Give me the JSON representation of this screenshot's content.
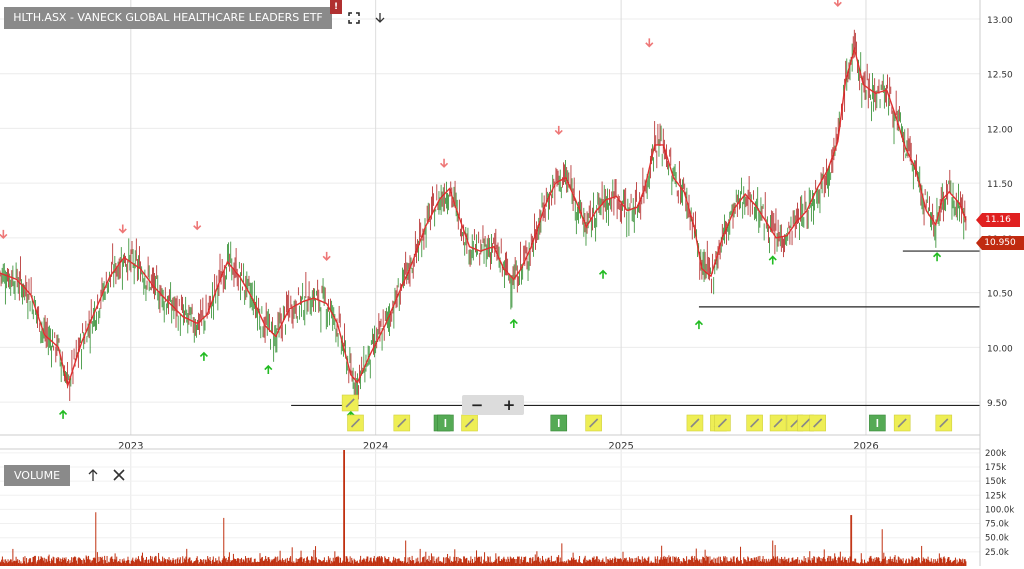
{
  "title": "HLTH.ASX - VANECK GLOBAL HEALTHCARE LEADERS ETF",
  "alert_flag": "!",
  "toolbar": {
    "fullscreen_icon": "fullscreen-icon",
    "download_icon": "download-icon"
  },
  "zoom": {
    "minus": "−",
    "plus": "+"
  },
  "volume_panel": {
    "label": "VOLUME",
    "up_icon": "arrow-up-icon",
    "close_icon": "close-icon"
  },
  "price_tags": {
    "current": "11.16",
    "support": "10.950"
  },
  "colors": {
    "price_line": "#e03030",
    "candle_up": "#2a8a2a",
    "candle_down": "#b02020",
    "volume": "#c03010",
    "up_arrow": "#22bb22",
    "down_arrow": "#ee7777",
    "event_marker": "#eeee55",
    "dividend_marker": "#55aa55"
  },
  "chart_data": [
    {
      "type": "line",
      "title": "HLTH.ASX - VANECK GLOBAL HEALTHCARE LEADERS ETF",
      "x_ticks": [
        "2023",
        "2024",
        "2025",
        "2026"
      ],
      "y_ticks": [
        "13.00",
        "12.50",
        "12.00",
        "11.50",
        "11.00",
        "10.50",
        "10.00",
        "9.50"
      ],
      "ylim": [
        9.2,
        13.1
      ],
      "x_domain_dates": [
        "2022-06-20",
        "2026-06-20"
      ],
      "grid": true,
      "series": [
        {
          "values": [
            [
              "2022-06-20",
              10.68
            ],
            [
              "2022-07-15",
              10.62
            ],
            [
              "2022-08-05",
              10.48
            ],
            [
              "2022-08-25",
              10.12
            ],
            [
              "2022-09-15",
              10.0
            ],
            [
              "2022-09-29",
              9.65
            ],
            [
              "2022-10-20",
              10.05
            ],
            [
              "2022-11-10",
              10.35
            ],
            [
              "2022-12-01",
              10.65
            ],
            [
              "2022-12-22",
              10.82
            ],
            [
              "2023-01-15",
              10.72
            ],
            [
              "2023-02-05",
              10.55
            ],
            [
              "2023-02-25",
              10.42
            ],
            [
              "2023-03-20",
              10.28
            ],
            [
              "2023-04-10",
              10.22
            ],
            [
              "2023-04-25",
              10.3
            ],
            [
              "2023-05-10",
              10.55
            ],
            [
              "2023-05-25",
              10.78
            ],
            [
              "2023-06-12",
              10.65
            ],
            [
              "2023-07-01",
              10.45
            ],
            [
              "2023-07-20",
              10.2
            ],
            [
              "2023-08-05",
              10.1
            ],
            [
              "2023-08-25",
              10.35
            ],
            [
              "2023-09-15",
              10.42
            ],
            [
              "2023-10-01",
              10.45
            ],
            [
              "2023-10-20",
              10.4
            ],
            [
              "2023-11-05",
              10.22
            ],
            [
              "2023-11-25",
              9.75
            ],
            [
              "2023-12-05",
              9.68
            ],
            [
              "2023-12-25",
              9.95
            ],
            [
              "2024-01-15",
              10.2
            ],
            [
              "2024-02-05",
              10.5
            ],
            [
              "2024-02-25",
              10.78
            ],
            [
              "2024-03-15",
              11.1
            ],
            [
              "2024-04-05",
              11.35
            ],
            [
              "2024-04-20",
              11.45
            ],
            [
              "2024-05-05",
              11.18
            ],
            [
              "2024-05-20",
              10.92
            ],
            [
              "2024-06-05",
              10.88
            ],
            [
              "2024-06-25",
              10.92
            ],
            [
              "2024-07-10",
              10.72
            ],
            [
              "2024-07-25",
              10.62
            ],
            [
              "2024-08-05",
              10.72
            ],
            [
              "2024-08-20",
              10.92
            ],
            [
              "2024-09-10",
              11.3
            ],
            [
              "2024-09-25",
              11.5
            ],
            [
              "2024-10-10",
              11.55
            ],
            [
              "2024-10-25",
              11.35
            ],
            [
              "2024-11-10",
              11.1
            ],
            [
              "2024-11-25",
              11.25
            ],
            [
              "2024-12-10",
              11.35
            ],
            [
              "2024-12-25",
              11.38
            ],
            [
              "2025-01-10",
              11.25
            ],
            [
              "2025-01-25",
              11.28
            ],
            [
              "2025-02-05",
              11.45
            ],
            [
              "2025-02-20",
              11.85
            ],
            [
              "2025-03-05",
              11.85
            ],
            [
              "2025-03-20",
              11.55
            ],
            [
              "2025-04-05",
              11.42
            ],
            [
              "2025-04-20",
              11.1
            ],
            [
              "2025-05-01",
              10.72
            ],
            [
              "2025-05-15",
              10.65
            ],
            [
              "2025-06-01",
              11.0
            ],
            [
              "2025-06-20",
              11.28
            ],
            [
              "2025-07-05",
              11.4
            ],
            [
              "2025-07-20",
              11.3
            ],
            [
              "2025-08-05",
              11.15
            ],
            [
              "2025-08-20",
              11.0
            ],
            [
              "2025-09-05",
              11.02
            ],
            [
              "2025-09-20",
              11.15
            ],
            [
              "2025-10-05",
              11.25
            ],
            [
              "2025-10-20",
              11.45
            ],
            [
              "2025-11-05",
              11.62
            ],
            [
              "2025-11-20",
              11.88
            ],
            [
              "2025-12-02",
              12.45
            ],
            [
              "2025-12-15",
              12.72
            ],
            [
              "2025-12-28",
              12.4
            ],
            [
              "2026-01-15",
              12.32
            ],
            [
              "2026-02-01",
              12.35
            ],
            [
              "2026-02-15",
              12.1
            ],
            [
              "2026-03-01",
              11.82
            ],
            [
              "2026-03-15",
              11.65
            ],
            [
              "2026-04-01",
              11.25
            ],
            [
              "2026-04-15",
              11.12
            ],
            [
              "2026-04-25",
              11.35
            ],
            [
              "2026-05-05",
              11.42
            ],
            [
              "2026-05-20",
              11.32
            ],
            [
              "2026-05-30",
              11.16
            ]
          ]
        }
      ]
    },
    {
      "type": "bar",
      "title": "VOLUME",
      "y_ticks": [
        "200k",
        "175k",
        "150k",
        "125k",
        "100.0k",
        "75.0k",
        "50.0k",
        "25.0k"
      ],
      "ylim": [
        0,
        205000
      ],
      "spikes": [
        [
          "2022-11-10",
          95000
        ],
        [
          "2023-05-20",
          85000
        ],
        [
          "2023-11-15",
          205000
        ],
        [
          "2025-12-10",
          90000
        ],
        [
          "2026-01-25",
          65000
        ],
        [
          "2024-02-15",
          45000
        ],
        [
          "2024-10-05",
          40000
        ],
        [
          "2025-08-15",
          45000
        ]
      ]
    }
  ],
  "annotations": {
    "horizontal_lines": [
      {
        "price": 9.47,
        "from": "2023-08-28"
      },
      {
        "price": 10.37,
        "from": "2025-04-27"
      },
      {
        "price": 10.88,
        "from": "2026-02-25"
      }
    ],
    "up_arrows": [
      [
        "2022-09-22",
        9.42
      ],
      [
        "2023-04-20",
        9.95
      ],
      [
        "2023-07-25",
        9.83
      ],
      [
        "2023-11-25",
        9.41
      ],
      [
        "2024-07-25",
        10.25
      ],
      [
        "2024-12-05",
        10.7
      ],
      [
        "2025-04-27",
        10.24
      ],
      [
        "2025-08-15",
        10.83
      ],
      [
        "2026-04-17",
        10.86
      ]
    ],
    "down_arrows": [
      [
        "2022-06-25",
        11.0
      ],
      [
        "2022-12-20",
        11.05
      ],
      [
        "2023-04-10",
        11.08
      ],
      [
        "2023-10-20",
        10.8
      ],
      [
        "2024-04-12",
        11.65
      ],
      [
        "2024-09-30",
        11.95
      ],
      [
        "2025-02-12",
        12.75
      ],
      [
        "2025-11-20",
        13.12
      ]
    ],
    "event_markers": [
      {
        "date": "2023-11-24",
        "row": 1,
        "kind": "event"
      },
      {
        "date": "2023-12-02",
        "row": 2,
        "kind": "event"
      },
      {
        "date": "2024-02-09",
        "row": 2,
        "kind": "event"
      },
      {
        "date": "2024-04-09",
        "row": 2,
        "kind": "dividend"
      },
      {
        "date": "2024-04-14",
        "row": 2,
        "kind": "dividend"
      },
      {
        "date": "2024-05-20",
        "row": 2,
        "kind": "event"
      },
      {
        "date": "2024-09-30",
        "row": 2,
        "kind": "dividend"
      },
      {
        "date": "2024-11-21",
        "row": 2,
        "kind": "event"
      },
      {
        "date": "2025-04-21",
        "row": 2,
        "kind": "event"
      },
      {
        "date": "2025-05-26",
        "row": 2,
        "kind": "event"
      },
      {
        "date": "2025-06-01",
        "row": 2,
        "kind": "event"
      },
      {
        "date": "2025-07-19",
        "row": 2,
        "kind": "event"
      },
      {
        "date": "2025-08-23",
        "row": 2,
        "kind": "event"
      },
      {
        "date": "2025-09-17",
        "row": 2,
        "kind": "event"
      },
      {
        "date": "2025-10-03",
        "row": 2,
        "kind": "event"
      },
      {
        "date": "2025-10-21",
        "row": 2,
        "kind": "event"
      },
      {
        "date": "2026-01-18",
        "row": 2,
        "kind": "dividend"
      },
      {
        "date": "2026-02-24",
        "row": 2,
        "kind": "event"
      },
      {
        "date": "2026-04-27",
        "row": 2,
        "kind": "event"
      }
    ]
  }
}
